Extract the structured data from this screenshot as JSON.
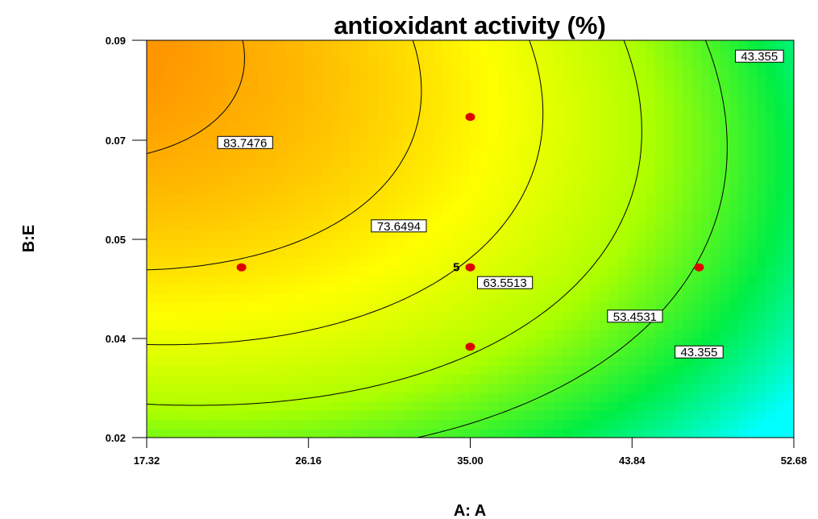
{
  "chart_data": {
    "type": "contour",
    "title": "antioxidant activity (%)",
    "xlabel": "A: A",
    "ylabel": "B:E",
    "xlim": [
      17.32,
      52.68
    ],
    "ylim": [
      0.02,
      0.09
    ],
    "x_ticks": [
      "17.32",
      "26.16",
      "35.00",
      "43.84",
      "52.68"
    ],
    "y_ticks": [
      "0.02",
      "0.04",
      "0.05",
      "0.07",
      "0.09"
    ],
    "color_scale": [
      "#00ffff",
      "#00ee44",
      "#aaff00",
      "#ffff00",
      "#ffaa00",
      "#ff3300"
    ],
    "contour_levels": [
      {
        "value": 83.7476,
        "label": "83.7476",
        "label_at": [
          22.7,
          0.072
        ]
      },
      {
        "value": 73.6494,
        "label": "73.6494",
        "label_at": [
          31.1,
          0.0573
        ]
      },
      {
        "value": 63.5513,
        "label": "63.5513",
        "label_at": [
          36.9,
          0.0473
        ]
      },
      {
        "value": 53.4531,
        "label": "53.4531",
        "label_at": [
          44.0,
          0.0414
        ]
      },
      {
        "value": 43.355,
        "label": "43.355",
        "label_at": [
          47.5,
          0.0351
        ]
      },
      {
        "value": 43.355,
        "label": "43.355",
        "label_at": [
          50.8,
          0.0872
        ]
      }
    ],
    "design_points": [
      {
        "x": 22.5,
        "y": 0.05
      },
      {
        "x": 35.0,
        "y": 0.0765
      },
      {
        "x": 35.0,
        "y": 0.05,
        "label": "5"
      },
      {
        "x": 35.0,
        "y": 0.036
      },
      {
        "x": 47.5,
        "y": 0.05
      }
    ],
    "point_color": "#dd0000"
  }
}
